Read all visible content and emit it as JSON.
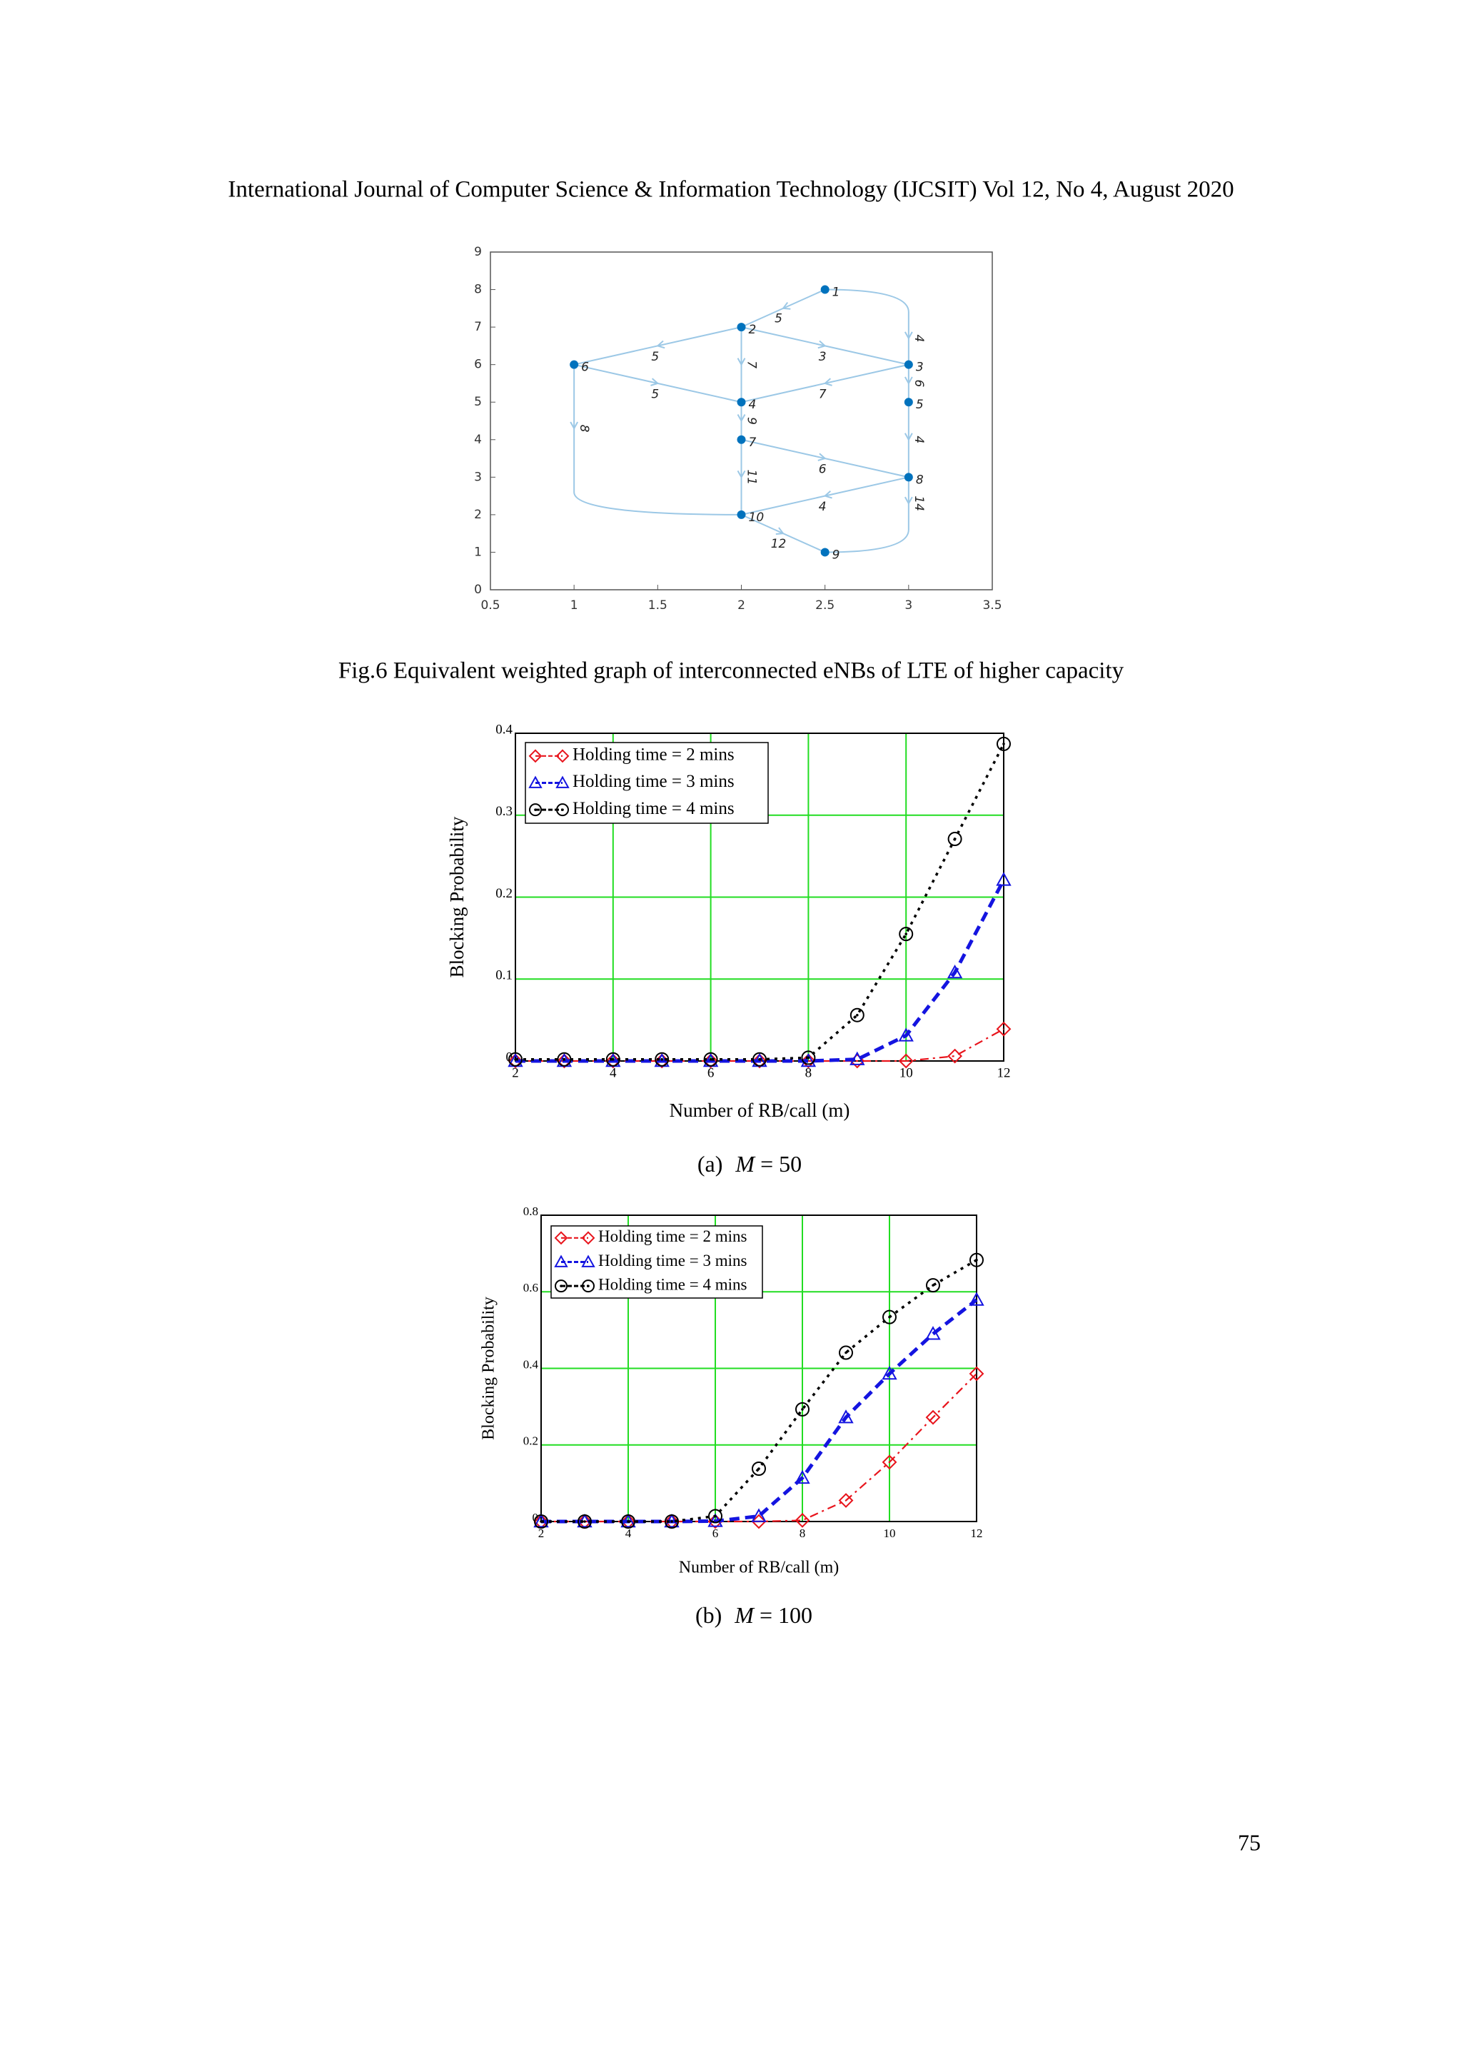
{
  "header": "International Journal of Computer Science & Information Technology (IJCSIT) Vol 12, No 4, August 2020",
  "figure6": {
    "xlim": [
      0.5,
      3.5
    ],
    "xticks": [
      0.5,
      1,
      1.5,
      2,
      2.5,
      3,
      3.5
    ],
    "ylim": [
      0,
      9
    ],
    "yticks": [
      0,
      1,
      2,
      3,
      4,
      5,
      6,
      7,
      8,
      9
    ],
    "node_color": "#0072bd",
    "edge_color": "#9cc8e6",
    "nodes": [
      {
        "label": "1",
        "x": 2.5,
        "y": 8
      },
      {
        "label": "2",
        "x": 2,
        "y": 7
      },
      {
        "label": "3",
        "x": 3,
        "y": 6
      },
      {
        "label": "4",
        "x": 2,
        "y": 5
      },
      {
        "label": "5",
        "x": 3,
        "y": 5
      },
      {
        "label": "6",
        "x": 1,
        "y": 6
      },
      {
        "label": "7",
        "x": 2,
        "y": 4
      },
      {
        "label": "8",
        "x": 3,
        "y": 3
      },
      {
        "label": "9",
        "x": 2.5,
        "y": 1
      },
      {
        "label": "10",
        "x": 2,
        "y": 2
      }
    ],
    "edges": [
      {
        "from": "1",
        "to": "2",
        "weight": 5
      },
      {
        "from": "1",
        "to": "3",
        "weight": 4
      },
      {
        "from": "2",
        "to": "6",
        "weight": 5
      },
      {
        "from": "2",
        "to": "3",
        "weight": 3
      },
      {
        "from": "2",
        "to": "4",
        "weight": 7
      },
      {
        "from": "6",
        "to": "4",
        "weight": 5
      },
      {
        "from": "3",
        "to": "4",
        "weight": 7
      },
      {
        "from": "3",
        "to": "5",
        "weight": 6
      },
      {
        "from": "5",
        "to": "8",
        "weight": 4
      },
      {
        "from": "4",
        "to": "7",
        "weight": 9
      },
      {
        "from": "6",
        "to": "10",
        "weight": 8
      },
      {
        "from": "7",
        "to": "8",
        "weight": 6
      },
      {
        "from": "7",
        "to": "10",
        "weight": 11
      },
      {
        "from": "8",
        "to": "10",
        "weight": 4
      },
      {
        "from": "8",
        "to": "9",
        "weight": 14
      },
      {
        "from": "10",
        "to": "9",
        "weight": 12
      }
    ],
    "caption": "Fig.6 Equivalent weighted graph of interconnected eNBs of LTE of higher capacity"
  },
  "chart_data": [
    {
      "type": "line",
      "x_label": "Number of RB/call (m)",
      "y_label": "Blocking Probability",
      "x": [
        2,
        3,
        4,
        5,
        6,
        7,
        8,
        9,
        10,
        11,
        12
      ],
      "xlim": [
        2,
        12
      ],
      "xticks": [
        2,
        4,
        6,
        8,
        10,
        12
      ],
      "ylim": [
        0,
        0.4
      ],
      "yticks": [
        0,
        0.1,
        0.2,
        0.3,
        0.4
      ],
      "grid": true,
      "grid_color": "#22dd22",
      "legend": "upper left",
      "series": [
        {
          "name": "Holding time = 2 mins",
          "color": "#e8141c",
          "marker": "diamond",
          "line_style": "dash-dot",
          "values": [
            0,
            0,
            0,
            0,
            0,
            0,
            0,
            0,
            0,
            0.006,
            0.039
          ]
        },
        {
          "name": "Holding time = 3 mins",
          "color": "#1414e0",
          "marker": "triangle",
          "line_style": "dashed",
          "values": [
            0,
            0,
            0,
            0,
            0,
            0,
            0,
            0.002,
            0.031,
            0.108,
            0.221
          ]
        },
        {
          "name": "Holding time = 4 mins",
          "color": "#000000",
          "marker": "circle",
          "line_style": "dotted",
          "values": [
            0.002,
            0.002,
            0.002,
            0.002,
            0.002,
            0.002,
            0.004,
            0.056,
            0.155,
            0.271,
            0.387
          ]
        }
      ]
    },
    {
      "type": "line",
      "x_label": "Number of RB/call (m)",
      "y_label": "Blocking Probability",
      "x": [
        2,
        3,
        4,
        5,
        6,
        7,
        8,
        9,
        10,
        11,
        12
      ],
      "xlim": [
        2,
        12
      ],
      "xticks": [
        2,
        4,
        6,
        8,
        10,
        12
      ],
      "ylim": [
        0,
        0.8
      ],
      "yticks": [
        0,
        0.2,
        0.4,
        0.6,
        0.8
      ],
      "grid": true,
      "grid_color": "#22dd22",
      "legend": "upper left",
      "series": [
        {
          "name": "Holding time = 2 mins",
          "color": "#e8141c",
          "marker": "diamond",
          "line_style": "dash-dot",
          "values": [
            0,
            0,
            0,
            0,
            0,
            0,
            0.003,
            0.055,
            0.155,
            0.272,
            0.386
          ]
        },
        {
          "name": "Holding time = 3 mins",
          "color": "#1414e0",
          "marker": "triangle",
          "line_style": "dashed",
          "values": [
            0,
            0,
            0,
            0,
            0.001,
            0.014,
            0.114,
            0.272,
            0.386,
            0.49,
            0.579
          ]
        },
        {
          "name": "Holding time = 4 mins",
          "color": "#000000",
          "marker": "circle",
          "line_style": "dotted",
          "values": [
            0,
            0,
            0,
            0,
            0.014,
            0.138,
            0.293,
            0.441,
            0.534,
            0.617,
            0.683
          ]
        }
      ]
    }
  ],
  "captions": [
    {
      "label": "(a)",
      "symbol": "M",
      "rest": "= 50"
    },
    {
      "label": "(b)",
      "symbol": "M",
      "rest": "= 100"
    }
  ],
  "page_number": "75"
}
